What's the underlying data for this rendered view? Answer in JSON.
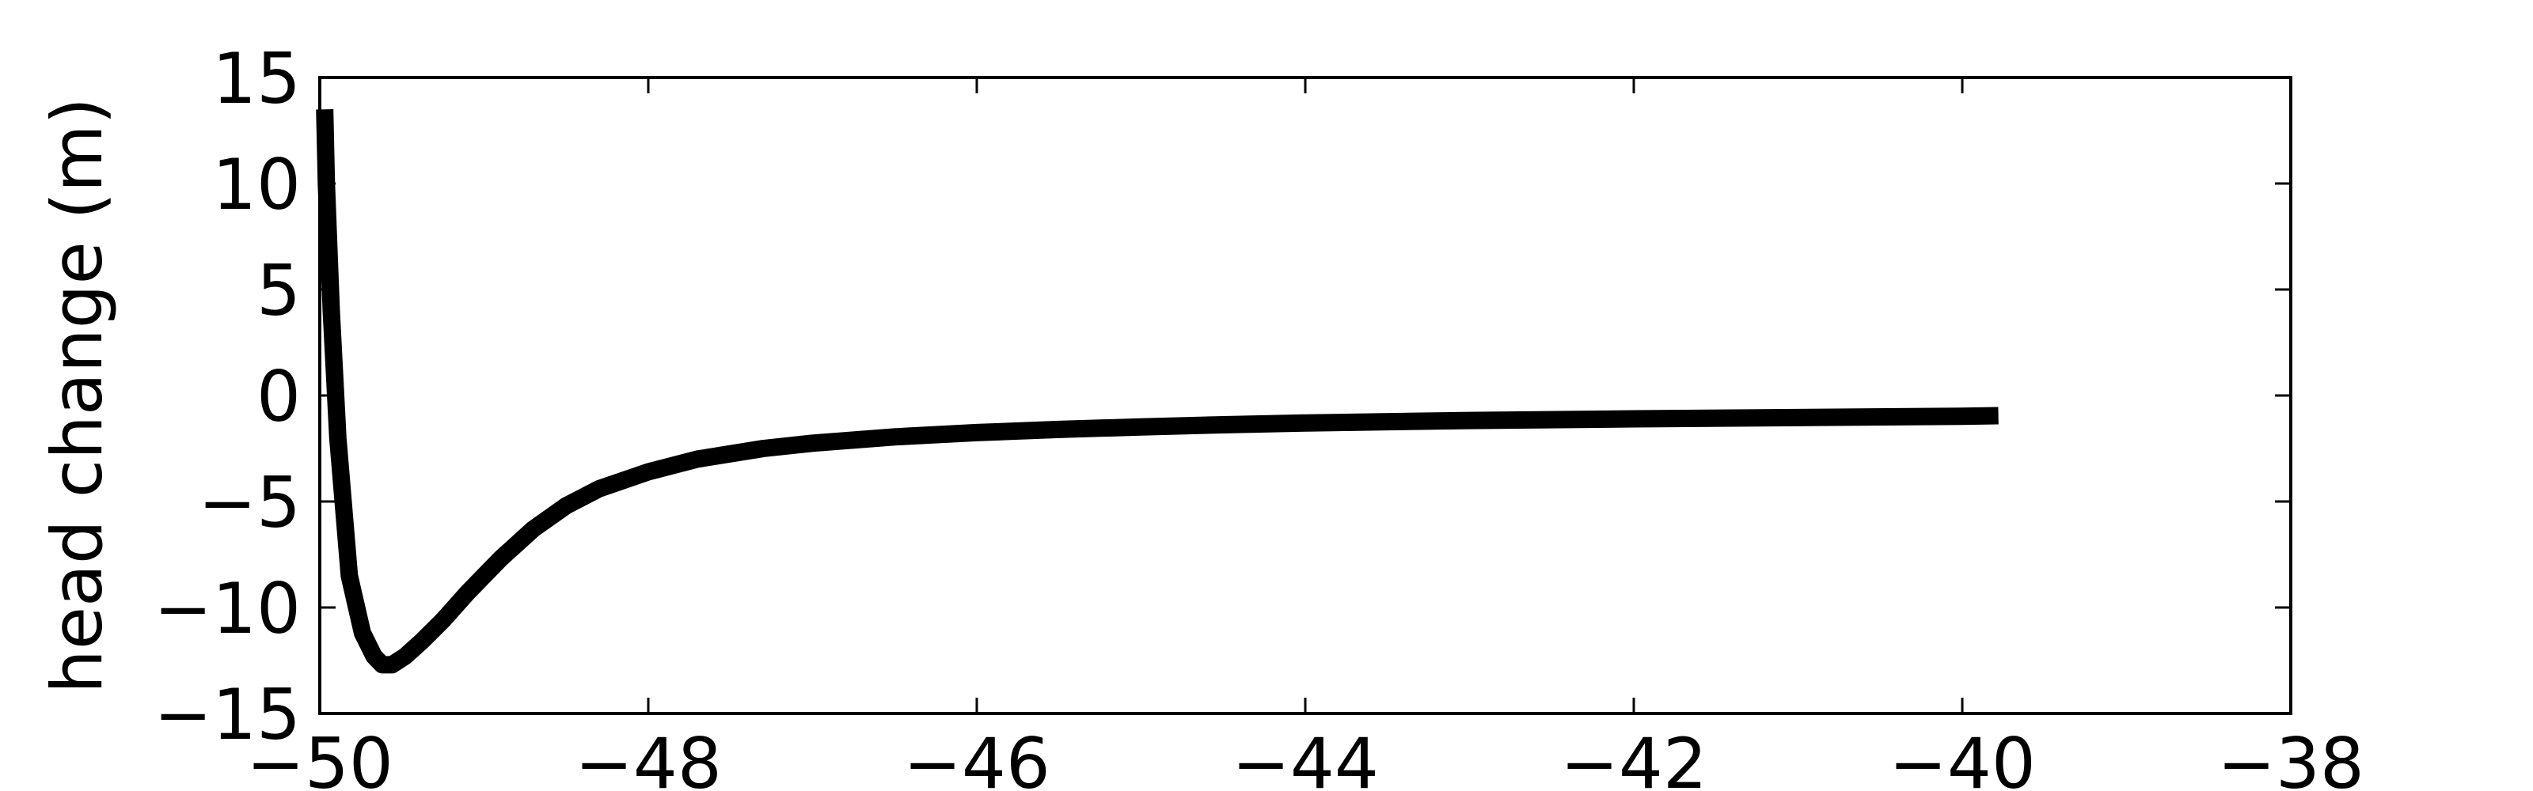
{
  "chart_data": {
    "type": "line",
    "title": "",
    "xlabel": "",
    "ylabel": "head change (m)",
    "xlim": [
      -50,
      -38
    ],
    "ylim": [
      -15,
      15
    ],
    "xticks": [
      -50,
      -48,
      -46,
      -44,
      -42,
      -40,
      -38
    ],
    "yticks": [
      -15,
      -10,
      -5,
      0,
      5,
      10,
      15
    ],
    "xtick_labels": [
      "−50",
      "−48",
      "−46",
      "−44",
      "−42",
      "−40",
      "−38"
    ],
    "ytick_labels": [
      "−15",
      "−10",
      "−5",
      "0",
      "5",
      "10",
      "15"
    ],
    "grid": false,
    "line_color": "#000000",
    "series": [
      {
        "x": [
          -49.97,
          -49.96,
          -49.93,
          -49.89,
          -49.82,
          -49.74,
          -49.67,
          -49.62,
          -49.56,
          -49.48,
          -49.38,
          -49.25,
          -49.1,
          -48.9,
          -48.7,
          -48.5,
          -48.3,
          -48.0,
          -47.7,
          -47.3,
          -47.0,
          -46.5,
          -46.0,
          -45.5,
          -45.0,
          -44.5,
          -44.0,
          -43.0,
          -42.0,
          -41.0,
          -40.0,
          -39.78
        ],
        "y": [
          13.5,
          10.0,
          4.0,
          -2.0,
          -8.5,
          -11.2,
          -12.3,
          -12.7,
          -12.7,
          -12.3,
          -11.6,
          -10.6,
          -9.3,
          -7.7,
          -6.3,
          -5.2,
          -4.4,
          -3.6,
          -3.0,
          -2.5,
          -2.25,
          -1.95,
          -1.75,
          -1.6,
          -1.48,
          -1.38,
          -1.3,
          -1.18,
          -1.1,
          -1.04,
          -0.98,
          -0.95
        ]
      }
    ]
  }
}
